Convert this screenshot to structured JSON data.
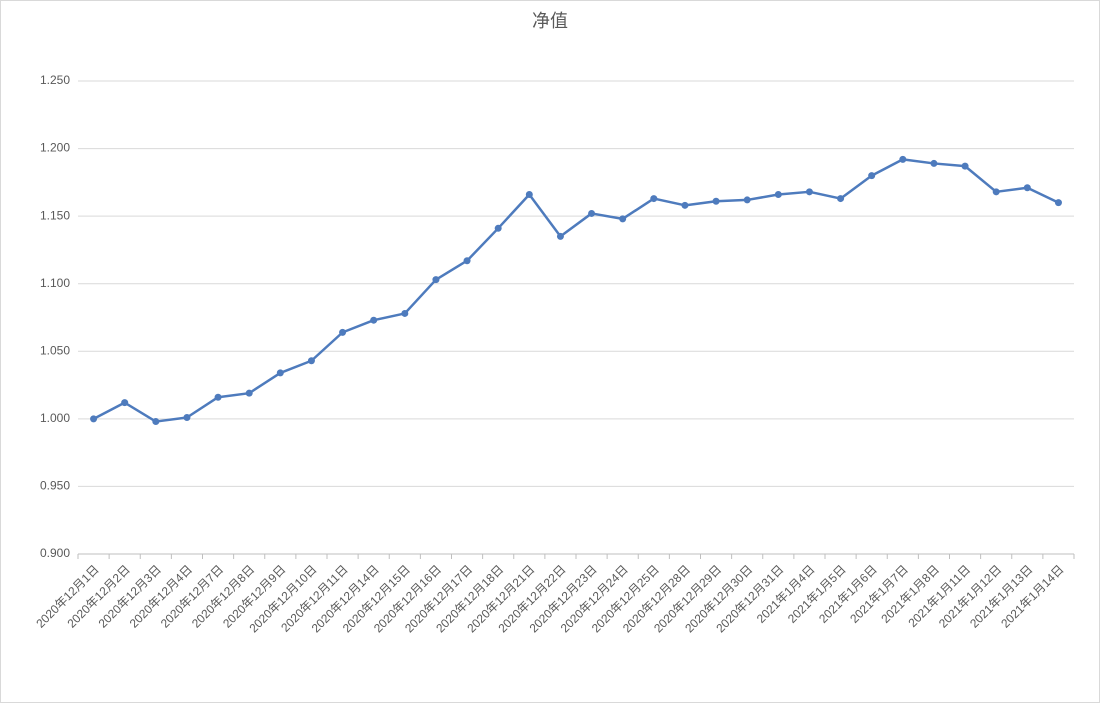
{
  "chart_data": {
    "type": "line",
    "title": "净值",
    "categories": [
      "2020年12月1日",
      "2020年12月2日",
      "2020年12月3日",
      "2020年12月4日",
      "2020年12月7日",
      "2020年12月8日",
      "2020年12月9日",
      "2020年12月10日",
      "2020年12月11日",
      "2020年12月14日",
      "2020年12月15日",
      "2020年12月16日",
      "2020年12月17日",
      "2020年12月18日",
      "2020年12月21日",
      "2020年12月22日",
      "2020年12月23日",
      "2020年12月24日",
      "2020年12月25日",
      "2020年12月28日",
      "2020年12月29日",
      "2020年12月30日",
      "2020年12月31日",
      "2021年1月4日",
      "2021年1月5日",
      "2021年1月6日",
      "2021年1月7日",
      "2021年1月8日",
      "2021年1月11日",
      "2021年1月12日",
      "2021年1月13日",
      "2021年1月14日"
    ],
    "values": [
      1.0,
      1.012,
      0.998,
      1.001,
      1.016,
      1.019,
      1.034,
      1.043,
      1.064,
      1.073,
      1.078,
      1.103,
      1.117,
      1.141,
      1.166,
      1.135,
      1.152,
      1.148,
      1.163,
      1.158,
      1.161,
      1.162,
      1.166,
      1.168,
      1.163,
      1.18,
      1.192,
      1.189,
      1.187,
      1.168,
      1.171,
      1.16
    ],
    "color": "#4e7bbd",
    "ylim": [
      0.9,
      1.25
    ],
    "yticks": [
      {
        "value": 0.9,
        "label": "0.900"
      },
      {
        "value": 0.95,
        "label": "0.950"
      },
      {
        "value": 1.0,
        "label": "1.000"
      },
      {
        "value": 1.05,
        "label": "1.050"
      },
      {
        "value": 1.1,
        "label": "1.100"
      },
      {
        "value": 1.15,
        "label": "1.150"
      },
      {
        "value": 1.2,
        "label": "1.200"
      },
      {
        "value": 1.25,
        "label": "1.250"
      }
    ],
    "grid": true
  }
}
